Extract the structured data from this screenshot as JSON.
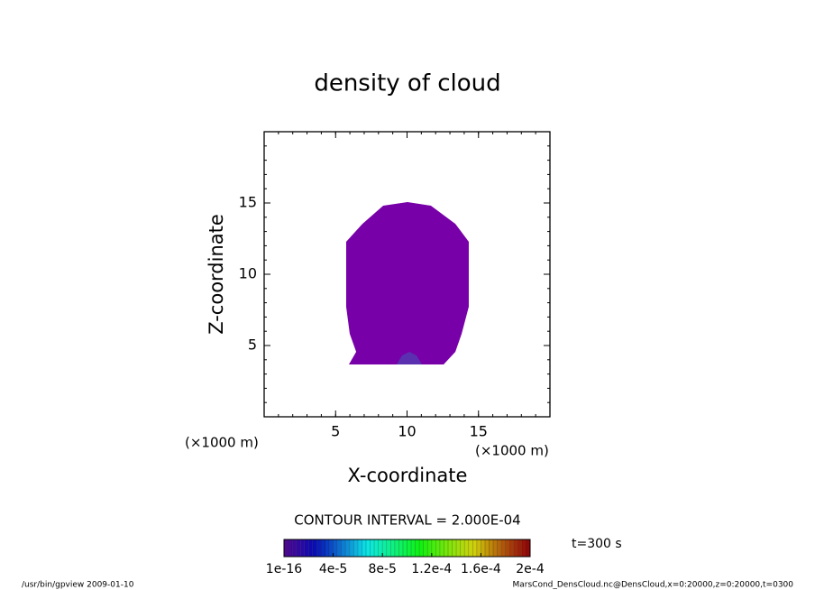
{
  "chart_data": {
    "type": "contour",
    "title": "density of cloud",
    "x_label": "X-coordinate",
    "y_label": "Z-coordinate",
    "x_unit": "(×1000 m)",
    "y_unit": "(×1000 m)",
    "xlim": [
      0,
      20
    ],
    "ylim": [
      0,
      20
    ],
    "xticks": [
      5,
      10,
      15
    ],
    "yticks": [
      5,
      10,
      15
    ],
    "minor_tick_step": 1,
    "regions": [
      {
        "color": "#7800a8",
        "x": [
          5.93,
          6.44,
          5.99,
          5.74,
          5.74,
          6.88,
          8.33,
          10.03,
          11.67,
          13.38,
          14.32,
          14.32,
          13.82,
          13.38,
          12.56
        ],
        "z": [
          3.67,
          4.56,
          5.82,
          7.72,
          12.28,
          13.54,
          14.81,
          15.06,
          14.81,
          13.54,
          12.28,
          7.72,
          5.82,
          4.56,
          3.67
        ]
      },
      {
        "color": "#5a30b0",
        "x": [
          9.27,
          9.65,
          10.16,
          10.66,
          11.04
        ],
        "z": [
          3.67,
          4.3,
          4.56,
          4.3,
          3.67
        ]
      }
    ],
    "contour_interval": "CONTOUR INTERVAL = 2.000E-04",
    "colorbar": {
      "lim": [
        0,
        0.0002
      ],
      "ticks": [
        {
          "value": 1e-16,
          "label": "1e-16"
        },
        {
          "value": 4e-05,
          "label": "4e-5"
        },
        {
          "value": 8e-05,
          "label": "8e-5"
        },
        {
          "value": 0.00012,
          "label": "1.2e-4"
        },
        {
          "value": 0.00016,
          "label": "1.6e-4"
        },
        {
          "value": 0.0002,
          "label": "2e-4"
        }
      ]
    },
    "time_label": "t=300 s",
    "footer_left": "/usr/bin/gpview  2009-01-10",
    "footer_right": "MarsCond_DensCloud.nc@DensCloud,x=0:20000,z=0:20000,t=0300"
  }
}
